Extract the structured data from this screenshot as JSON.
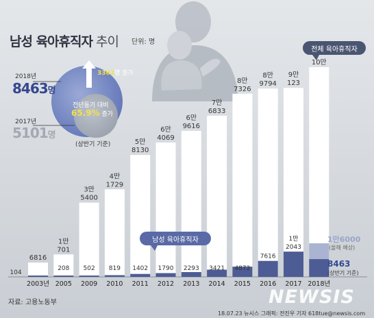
{
  "header": {
    "title_bold": "남성 육아휴직자",
    "title_light": " 추이",
    "unit": "단위: 명"
  },
  "comparison": {
    "y2018_label": "2018년",
    "y2018_value": "8463",
    "y2018_unit": "명",
    "y2017_label": "2017년",
    "y2017_value": "5101",
    "y2017_unit": "명",
    "increase_value": "3362",
    "increase_text": "명 증가",
    "yoy_label": "전년동기 대비",
    "yoy_value": "65.9%",
    "yoy_text": " 증가",
    "basis": "(상반기 기준)"
  },
  "legend": {
    "total": "전체 육아휴직자",
    "male": "남성 육아휴직자"
  },
  "estimate_2018": {
    "line1": "1만6000",
    "line2": "(올해 예상)",
    "h1_line1": "8463",
    "h1_line2": "(상반기 기준)"
  },
  "chart_data": {
    "type": "bar",
    "categories": [
      "2003년",
      "2005",
      "2009",
      "2010",
      "2011",
      "2012",
      "2013",
      "2014",
      "2015",
      "2016",
      "2017",
      "2018년"
    ],
    "series": [
      {
        "name": "전체 육아휴직자",
        "values": [
          6816,
          10701,
          35400,
          41729,
          58130,
          64069,
          69616,
          76833,
          87326,
          89794,
          90123,
          100000
        ],
        "labels": [
          [
            "6816"
          ],
          [
            "1만",
            "701"
          ],
          [
            "3만",
            "5400"
          ],
          [
            "4만",
            "1729"
          ],
          [
            "5만",
            "8130"
          ],
          [
            "6만",
            "4069"
          ],
          [
            "6만",
            "9616"
          ],
          [
            "7만",
            "6833"
          ],
          [
            "8만",
            "7326"
          ],
          [
            "8만",
            "9794"
          ],
          [
            "9만",
            "123"
          ],
          [
            "10만"
          ]
        ]
      },
      {
        "name": "남성 육아휴직자",
        "values": [
          104,
          208,
          502,
          819,
          1402,
          1790,
          2293,
          3421,
          4872,
          7616,
          12043,
          16000
        ],
        "labels": [
          [
            "104"
          ],
          [
            "208"
          ],
          [
            "502"
          ],
          [
            "819"
          ],
          [
            "1402"
          ],
          [
            "1790"
          ],
          [
            "2293"
          ],
          [
            "3421"
          ],
          [
            "4872"
          ],
          [
            "7616"
          ],
          [
            "1만",
            "2043"
          ],
          [
            ""
          ]
        ]
      }
    ],
    "male_2018_h1": 8463
  },
  "footer": {
    "source": "자료: 고용노동부",
    "credit": "18.07.23 뉴시스 그래픽: 전진우 기자 618tue@newsis.com",
    "logo": "NEWSIS"
  }
}
